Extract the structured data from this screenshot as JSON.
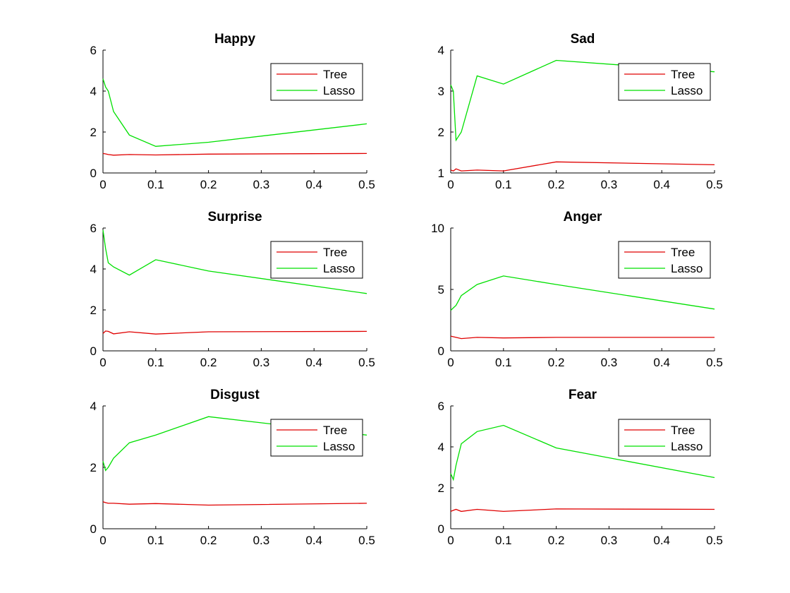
{
  "figure": {
    "legend_placement": "top-right",
    "x_ticks": [
      0,
      0.1,
      0.2,
      0.3,
      0.4,
      0.5
    ],
    "colors": {
      "Tree": "#e00000",
      "Lasso": "#00e000"
    }
  },
  "chart_data": [
    {
      "type": "line",
      "title": "Happy",
      "xlim": [
        0,
        0.5
      ],
      "ylim": [
        0,
        6
      ],
      "yticks": [
        0,
        2,
        4,
        6
      ],
      "series": [
        {
          "name": "Tree",
          "x": [
            0,
            0.005,
            0.01,
            0.02,
            0.05,
            0.1,
            0.2,
            0.5
          ],
          "values": [
            0.95,
            0.93,
            0.9,
            0.87,
            0.9,
            0.88,
            0.92,
            0.95
          ]
        },
        {
          "name": "Lasso",
          "x": [
            0,
            0.005,
            0.01,
            0.02,
            0.05,
            0.1,
            0.2,
            0.5
          ],
          "values": [
            4.6,
            4.2,
            4.0,
            3.0,
            1.85,
            1.3,
            1.5,
            2.4
          ]
        }
      ]
    },
    {
      "type": "line",
      "title": "Sad",
      "xlim": [
        0,
        0.5
      ],
      "ylim": [
        1,
        4
      ],
      "yticks": [
        1,
        2,
        3,
        4
      ],
      "series": [
        {
          "name": "Tree",
          "x": [
            0,
            0.005,
            0.01,
            0.02,
            0.05,
            0.1,
            0.2,
            0.5
          ],
          "values": [
            1.07,
            1.05,
            1.1,
            1.05,
            1.07,
            1.05,
            1.27,
            1.2
          ]
        },
        {
          "name": "Lasso",
          "x": [
            0,
            0.005,
            0.01,
            0.02,
            0.05,
            0.1,
            0.2,
            0.5
          ],
          "values": [
            3.15,
            3.0,
            1.8,
            2.0,
            3.37,
            3.17,
            3.75,
            3.47
          ]
        }
      ]
    },
    {
      "type": "line",
      "title": "Surprise",
      "xlim": [
        0,
        0.5
      ],
      "ylim": [
        0,
        6
      ],
      "yticks": [
        0,
        2,
        4,
        6
      ],
      "series": [
        {
          "name": "Tree",
          "x": [
            0,
            0.005,
            0.01,
            0.02,
            0.05,
            0.1,
            0.2,
            0.5
          ],
          "values": [
            0.85,
            0.97,
            0.95,
            0.83,
            0.93,
            0.82,
            0.93,
            0.95
          ]
        },
        {
          "name": "Lasso",
          "x": [
            0,
            0.005,
            0.01,
            0.02,
            0.05,
            0.1,
            0.2,
            0.5
          ],
          "values": [
            5.9,
            5.0,
            4.3,
            4.1,
            3.7,
            4.45,
            3.9,
            2.8
          ]
        }
      ]
    },
    {
      "type": "line",
      "title": "Anger",
      "xlim": [
        0,
        0.5
      ],
      "ylim": [
        0,
        10
      ],
      "yticks": [
        0,
        5,
        10
      ],
      "series": [
        {
          "name": "Tree",
          "x": [
            0,
            0.005,
            0.01,
            0.02,
            0.05,
            0.1,
            0.2,
            0.5
          ],
          "values": [
            1.2,
            1.15,
            1.1,
            1.0,
            1.1,
            1.05,
            1.1,
            1.1
          ]
        },
        {
          "name": "Lasso",
          "x": [
            0,
            0.005,
            0.01,
            0.02,
            0.05,
            0.1,
            0.2,
            0.5
          ],
          "values": [
            3.3,
            3.5,
            3.7,
            4.5,
            5.4,
            6.1,
            5.4,
            3.4
          ]
        }
      ]
    },
    {
      "type": "line",
      "title": "Disgust",
      "xlim": [
        0,
        0.5
      ],
      "ylim": [
        0,
        4
      ],
      "yticks": [
        0,
        2,
        4
      ],
      "series": [
        {
          "name": "Tree",
          "x": [
            0,
            0.005,
            0.01,
            0.02,
            0.05,
            0.1,
            0.2,
            0.5
          ],
          "values": [
            0.88,
            0.85,
            0.83,
            0.83,
            0.8,
            0.82,
            0.77,
            0.83
          ]
        },
        {
          "name": "Lasso",
          "x": [
            0,
            0.005,
            0.01,
            0.02,
            0.05,
            0.1,
            0.2,
            0.5
          ],
          "values": [
            2.2,
            1.9,
            2.0,
            2.3,
            2.8,
            3.05,
            3.65,
            3.05
          ]
        }
      ]
    },
    {
      "type": "line",
      "title": "Fear",
      "xlim": [
        0,
        0.5
      ],
      "ylim": [
        0,
        6
      ],
      "yticks": [
        0,
        2,
        4,
        6
      ],
      "series": [
        {
          "name": "Tree",
          "x": [
            0,
            0.005,
            0.01,
            0.02,
            0.05,
            0.1,
            0.2,
            0.5
          ],
          "values": [
            0.85,
            0.9,
            0.95,
            0.85,
            0.95,
            0.85,
            0.97,
            0.95
          ]
        },
        {
          "name": "Lasso",
          "x": [
            0,
            0.005,
            0.01,
            0.02,
            0.05,
            0.1,
            0.2,
            0.5
          ],
          "values": [
            2.7,
            2.4,
            3.1,
            4.15,
            4.75,
            5.05,
            3.95,
            2.5
          ]
        }
      ]
    }
  ]
}
